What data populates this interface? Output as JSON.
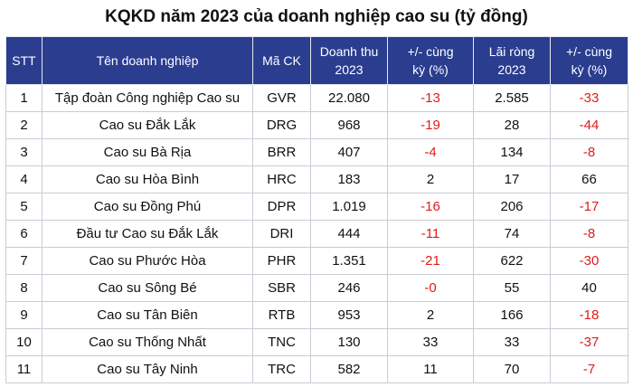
{
  "title": "KQKD năm 2023 của doanh nghiệp cao su (tỷ đồng)",
  "headers": {
    "stt": "STT",
    "name": "Tên doanh nghiệp",
    "ticker": "Mã CK",
    "revenue_l1": "Doanh thu",
    "revenue_l2": "2023",
    "rev_change_l1": "+/- cùng",
    "rev_change_l2": "kỳ (%)",
    "profit_l1": "Lãi ròng",
    "profit_l2": "2023",
    "profit_change_l1": "+/- cùng",
    "profit_change_l2": "kỳ (%)"
  },
  "colors": {
    "header_bg": "#2b3d8f",
    "negative": "#e01b1b"
  },
  "rows": [
    {
      "stt": "1",
      "name": "Tập đoàn Công nghiệp Cao su",
      "ticker": "GVR",
      "revenue": "22.080",
      "rev_change": "-13",
      "profit": "2.585",
      "profit_change": "-33"
    },
    {
      "stt": "2",
      "name": "Cao su Đắk Lắk",
      "ticker": "DRG",
      "revenue": "968",
      "rev_change": "-19",
      "profit": "28",
      "profit_change": "-44"
    },
    {
      "stt": "3",
      "name": "Cao su Bà Rịa",
      "ticker": "BRR",
      "revenue": "407",
      "rev_change": "-4",
      "profit": "134",
      "profit_change": "-8"
    },
    {
      "stt": "4",
      "name": "Cao su Hòa Bình",
      "ticker": "HRC",
      "revenue": "183",
      "rev_change": "2",
      "profit": "17",
      "profit_change": "66"
    },
    {
      "stt": "5",
      "name": "Cao su Đồng Phú",
      "ticker": "DPR",
      "revenue": "1.019",
      "rev_change": "-16",
      "profit": "206",
      "profit_change": "-17"
    },
    {
      "stt": "6",
      "name": "Đầu tư Cao su Đắk Lắk",
      "ticker": "DRI",
      "revenue": "444",
      "rev_change": "-11",
      "profit": "74",
      "profit_change": "-8"
    },
    {
      "stt": "7",
      "name": "Cao su Phước Hòa",
      "ticker": "PHR",
      "revenue": "1.351",
      "rev_change": "-21",
      "profit": "622",
      "profit_change": "-30"
    },
    {
      "stt": "8",
      "name": "Cao su Sông Bé",
      "ticker": "SBR",
      "revenue": "246",
      "rev_change": "-0",
      "profit": "55",
      "profit_change": "40"
    },
    {
      "stt": "9",
      "name": "Cao su Tân Biên",
      "ticker": "RTB",
      "revenue": "953",
      "rev_change": "2",
      "profit": "166",
      "profit_change": "-18"
    },
    {
      "stt": "10",
      "name": "Cao su Thống Nhất",
      "ticker": "TNC",
      "revenue": "130",
      "rev_change": "33",
      "profit": "33",
      "profit_change": "-37"
    },
    {
      "stt": "11",
      "name": "Cao su Tây Ninh",
      "ticker": "TRC",
      "revenue": "582",
      "rev_change": "11",
      "profit": "70",
      "profit_change": "-7"
    }
  ]
}
